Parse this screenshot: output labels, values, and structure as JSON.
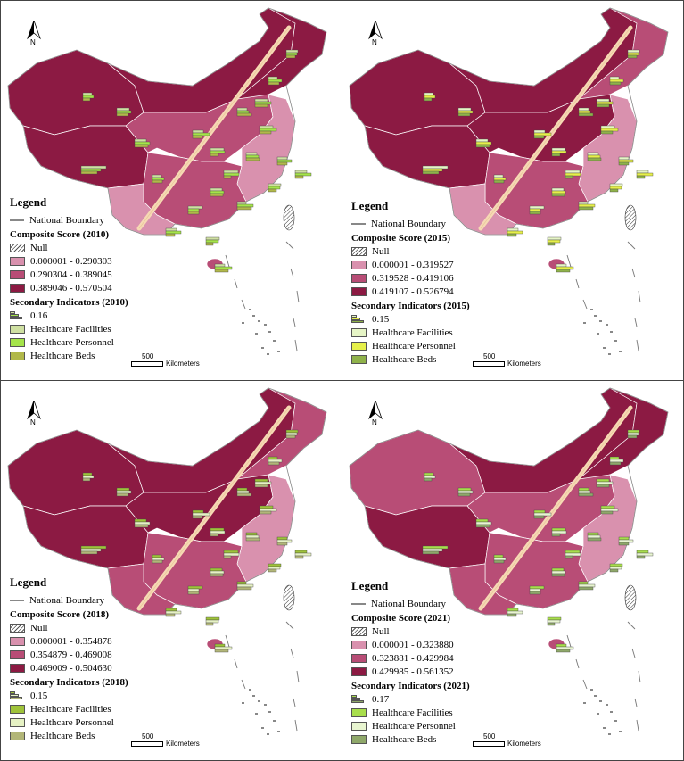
{
  "colors": {
    "low": "#d991ae",
    "mid": "#b84d76",
    "high": "#8c1a43",
    "diagonal_line": "#f6d9b4",
    "boundary": "#888888"
  },
  "panels": [
    {
      "legend_title": "Legend",
      "boundary_label": "National Boundary",
      "composite_title": "Composite Score (2010)",
      "null_label": "Null",
      "ranges": [
        "0.000001 - 0.290303",
        "0.290304 - 0.389045",
        "0.389046 - 0.570504"
      ],
      "secondary_title": "Secondary Indicators (2010)",
      "secondary_value": "0.16",
      "indicators": [
        {
          "label": "Healthcare Facilities",
          "color": "#cfe0a2"
        },
        {
          "label": "Healthcare Personnel",
          "color": "#a5e44a"
        },
        {
          "label": "Healthcare Beds",
          "color": "#b1b84a"
        }
      ],
      "north": "N",
      "scale_number": "500",
      "scale_unit": "Kilometers"
    },
    {
      "legend_title": "Legend",
      "boundary_label": "National Boundary",
      "composite_title": "Composite Score (2015)",
      "null_label": "Null",
      "ranges": [
        "0.000001 - 0.319527",
        "0.319528 - 0.419106",
        "0.419107 - 0.526794"
      ],
      "secondary_title": "Secondary Indicators (2015)",
      "secondary_value": "0.15",
      "indicators": [
        {
          "label": "Healthcare Facilities",
          "color": "#e6f5c6"
        },
        {
          "label": "Healthcare Personnel",
          "color": "#e6f04a"
        },
        {
          "label": "Healthcare Beds",
          "color": "#8fb24a"
        }
      ],
      "north": "N",
      "scale_number": "500",
      "scale_unit": "Kilometers"
    },
    {
      "legend_title": "Legend",
      "boundary_label": "National Boundary",
      "composite_title": "Composite Score (2018)",
      "null_label": "Null",
      "ranges": [
        "0.000001 - 0.354878",
        "0.354879 - 0.469008",
        "0.469009 - 0.504630"
      ],
      "secondary_title": "Secondary Indicators (2018)",
      "secondary_value": "0.15",
      "indicators": [
        {
          "label": "Healthcare Facilities",
          "color": "#9fc33a"
        },
        {
          "label": "Healthcare Personnel",
          "color": "#e6f2c4"
        },
        {
          "label": "Healthcare Beds",
          "color": "#b2b678"
        }
      ],
      "north": "N",
      "scale_number": "500",
      "scale_unit": "Kilometers"
    },
    {
      "legend_title": "Legend",
      "boundary_label": "National Boundary",
      "composite_title": "Composite Score (2021)",
      "null_label": "Null",
      "ranges": [
        "0.000001 - 0.323880",
        "0.323881 - 0.429984",
        "0.429985 - 0.561352"
      ],
      "secondary_title": "Secondary Indicators (2021)",
      "secondary_value": "0.17",
      "indicators": [
        {
          "label": "Healthcare Facilities",
          "color": "#a8de4c"
        },
        {
          "label": "Healthcare Personnel",
          "color": "#e8f5d0"
        },
        {
          "label": "Healthcare Beds",
          "color": "#8fa86a"
        }
      ],
      "north": "N",
      "scale_number": "500",
      "scale_unit": "Kilometers"
    }
  ]
}
